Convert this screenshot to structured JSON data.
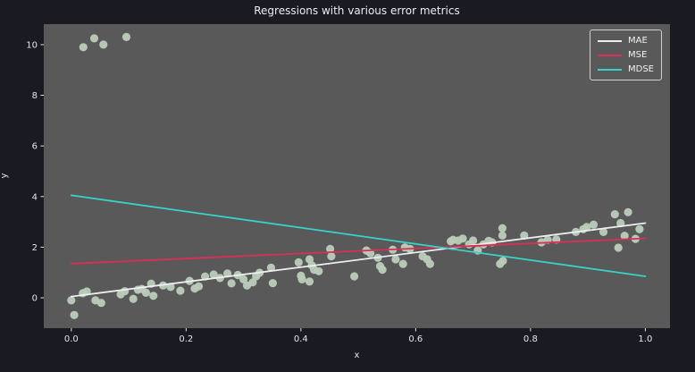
{
  "figure": {
    "background_color": "#1a1a23",
    "axes_background_color": "#595959",
    "tick_color": "#e6e6e6",
    "text_color": "#ededf0",
    "legend_border_color": "#cfcfcf"
  },
  "chart_data": {
    "type": "scatter",
    "title": "Regressions with various error metrics",
    "xlabel": "x",
    "ylabel": "y",
    "xlim": [
      -0.048,
      1.043
    ],
    "ylim": [
      -1.2,
      10.81
    ],
    "grid": false,
    "legend_position": "upper right",
    "xticks": {
      "values": [
        0.0,
        0.2,
        0.4,
        0.6,
        0.8,
        1.0
      ],
      "labels": [
        "0.0",
        "0.2",
        "0.4",
        "0.6",
        "0.8",
        "1.0"
      ]
    },
    "yticks": {
      "values": [
        0,
        2,
        4,
        6,
        8,
        10
      ],
      "labels": [
        "0",
        "2",
        "4",
        "6",
        "8",
        "10"
      ]
    },
    "scatter_series": {
      "name": "samples",
      "color": "#bccdba",
      "marker_radius": 4.6,
      "points": [
        [
          0.0,
          -0.1
        ],
        [
          0.005,
          -0.68
        ],
        [
          0.02,
          0.18
        ],
        [
          0.027,
          0.25
        ],
        [
          0.042,
          -0.1
        ],
        [
          0.052,
          -0.2
        ],
        [
          0.086,
          0.14
        ],
        [
          0.093,
          0.26
        ],
        [
          0.108,
          -0.04
        ],
        [
          0.116,
          0.32
        ],
        [
          0.123,
          0.35
        ],
        [
          0.13,
          0.2
        ],
        [
          0.139,
          0.56
        ],
        [
          0.143,
          0.08
        ],
        [
          0.16,
          0.49
        ],
        [
          0.173,
          0.43
        ],
        [
          0.19,
          0.28
        ],
        [
          0.206,
          0.67
        ],
        [
          0.215,
          0.37
        ],
        [
          0.222,
          0.45
        ],
        [
          0.233,
          0.84
        ],
        [
          0.248,
          0.92
        ],
        [
          0.259,
          0.78
        ],
        [
          0.272,
          0.96
        ],
        [
          0.279,
          0.57
        ],
        [
          0.29,
          0.9
        ],
        [
          0.3,
          0.73
        ],
        [
          0.306,
          0.49
        ],
        [
          0.316,
          0.61
        ],
        [
          0.322,
          0.85
        ],
        [
          0.328,
          0.99
        ],
        [
          0.348,
          1.19
        ],
        [
          0.351,
          0.58
        ],
        [
          0.396,
          1.4
        ],
        [
          0.4,
          0.87
        ],
        [
          0.402,
          0.73
        ],
        [
          0.415,
          1.52
        ],
        [
          0.415,
          0.64
        ],
        [
          0.419,
          1.28
        ],
        [
          0.423,
          1.11
        ],
        [
          0.431,
          1.05
        ],
        [
          0.451,
          1.93
        ],
        [
          0.453,
          1.64
        ],
        [
          0.493,
          0.85
        ],
        [
          0.514,
          1.87
        ],
        [
          0.521,
          1.76
        ],
        [
          0.534,
          1.58
        ],
        [
          0.538,
          1.25
        ],
        [
          0.542,
          1.11
        ],
        [
          0.56,
          1.9
        ],
        [
          0.565,
          1.52
        ],
        [
          0.578,
          1.34
        ],
        [
          0.581,
          1.99
        ],
        [
          0.59,
          1.93
        ],
        [
          0.612,
          1.64
        ],
        [
          0.62,
          1.52
        ],
        [
          0.625,
          1.34
        ],
        [
          0.661,
          2.23
        ],
        [
          0.665,
          2.29
        ],
        [
          0.674,
          2.26
        ],
        [
          0.682,
          2.34
        ],
        [
          0.693,
          2.11
        ],
        [
          0.7,
          2.26
        ],
        [
          0.708,
          1.87
        ],
        [
          0.718,
          2.11
        ],
        [
          0.727,
          2.25
        ],
        [
          0.733,
          2.19
        ],
        [
          0.747,
          1.34
        ],
        [
          0.751,
          2.75
        ],
        [
          0.751,
          2.46
        ],
        [
          0.752,
          1.46
        ],
        [
          0.789,
          2.46
        ],
        [
          0.819,
          2.19
        ],
        [
          0.83,
          2.29
        ],
        [
          0.845,
          2.3
        ],
        [
          0.879,
          2.6
        ],
        [
          0.892,
          2.71
        ],
        [
          0.898,
          2.8
        ],
        [
          0.91,
          2.89
        ],
        [
          0.927,
          2.6
        ],
        [
          0.947,
          3.3
        ],
        [
          0.953,
          1.98
        ],
        [
          0.957,
          2.95
        ],
        [
          0.964,
          2.45
        ],
        [
          0.97,
          3.38
        ],
        [
          0.983,
          2.33
        ],
        [
          0.99,
          2.71
        ],
        [
          0.021,
          9.9
        ],
        [
          0.04,
          10.25
        ],
        [
          0.056,
          10.0
        ],
        [
          0.096,
          10.3
        ]
      ]
    },
    "regression_lines": [
      {
        "label": "MAE",
        "color": "#ededf2",
        "x": [
          0,
          1
        ],
        "y": [
          0.05,
          2.95
        ]
      },
      {
        "label": "MSE",
        "color": "#dc2e57",
        "x": [
          0,
          1
        ],
        "y": [
          1.35,
          2.35
        ]
      },
      {
        "label": "MDSE",
        "color": "#38d2c8",
        "x": [
          0,
          1
        ],
        "y": [
          4.05,
          0.85
        ]
      }
    ]
  }
}
